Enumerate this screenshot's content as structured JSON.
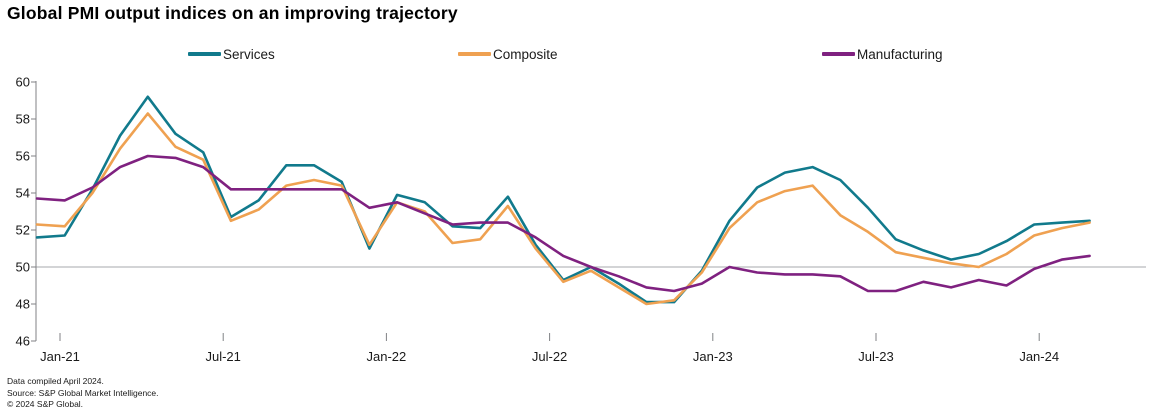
{
  "title": "Global PMI output indices on an improving trajectory",
  "legend": [
    {
      "label": "Services",
      "color": "#117a8c"
    },
    {
      "label": "Composite",
      "color": "#efa151"
    },
    {
      "label": "Manufacturing",
      "color": "#7f2180"
    }
  ],
  "footer": {
    "line1": "Data compiled April 2024.",
    "line2": "Source: S&P Global Market Intelligence.",
    "line3": "© 2024 S&P Global."
  },
  "chart_data": {
    "type": "line",
    "title": "Global PMI output indices on an improving trajectory",
    "legend_position": "top",
    "grid": "reference line at 50 only",
    "ylim": [
      46,
      60
    ],
    "y_ticks": [
      46,
      48,
      50,
      52,
      54,
      56,
      58,
      60
    ],
    "reference_line": 50,
    "x_tick_labels": [
      "Jan-21",
      "Jul-21",
      "Jan-22",
      "Jul-22",
      "Jan-23",
      "Jul-23",
      "Jan-24"
    ],
    "x": [
      "Jan-21",
      "Feb-21",
      "Mar-21",
      "Apr-21",
      "May-21",
      "Jun-21",
      "Jul-21",
      "Aug-21",
      "Sep-21",
      "Oct-21",
      "Nov-21",
      "Dec-21",
      "Jan-22",
      "Feb-22",
      "Mar-22",
      "Apr-22",
      "May-22",
      "Jun-22",
      "Jul-22",
      "Aug-22",
      "Sep-22",
      "Oct-22",
      "Nov-22",
      "Dec-22",
      "Jan-23",
      "Feb-23",
      "Mar-23",
      "Apr-23",
      "May-23",
      "Jun-23",
      "Jul-23",
      "Aug-23",
      "Sep-23",
      "Oct-23",
      "Nov-23",
      "Dec-23",
      "Jan-24",
      "Feb-24",
      "Mar-24"
    ],
    "series": [
      {
        "name": "Services",
        "color": "#117a8c",
        "values": [
          51.6,
          51.7,
          54.2,
          57.1,
          59.2,
          57.2,
          56.2,
          52.7,
          53.6,
          55.5,
          55.5,
          54.6,
          51.0,
          53.9,
          53.5,
          52.2,
          52.1,
          53.8,
          51.2,
          49.3,
          50.0,
          49.1,
          48.1,
          48.1,
          49.8,
          52.5,
          54.3,
          55.1,
          55.4,
          54.7,
          53.2,
          51.5,
          50.9,
          50.4,
          50.7,
          51.4,
          52.3,
          52.4,
          52.5
        ]
      },
      {
        "name": "Composite",
        "color": "#efa151",
        "values": [
          52.3,
          52.2,
          54.0,
          56.4,
          58.3,
          56.5,
          55.8,
          52.5,
          53.1,
          54.4,
          54.7,
          54.4,
          51.2,
          53.5,
          53.0,
          51.3,
          51.5,
          53.3,
          51.0,
          49.2,
          49.8,
          48.9,
          48.0,
          48.2,
          49.7,
          52.1,
          53.5,
          54.1,
          54.4,
          52.8,
          51.9,
          50.8,
          50.5,
          50.2,
          50.0,
          50.7,
          51.7,
          52.1,
          52.4
        ]
      },
      {
        "name": "Manufacturing",
        "color": "#7f2180",
        "values": [
          53.7,
          53.6,
          54.3,
          55.4,
          56.0,
          55.9,
          55.4,
          54.2,
          54.2,
          54.2,
          54.2,
          54.2,
          53.2,
          53.5,
          52.9,
          52.3,
          52.4,
          52.4,
          51.6,
          50.6,
          50.0,
          49.5,
          48.9,
          48.7,
          49.1,
          50.0,
          49.7,
          49.6,
          49.6,
          49.5,
          48.7,
          48.7,
          49.2,
          48.9,
          49.3,
          49.0,
          49.9,
          50.4,
          50.6
        ]
      }
    ]
  }
}
